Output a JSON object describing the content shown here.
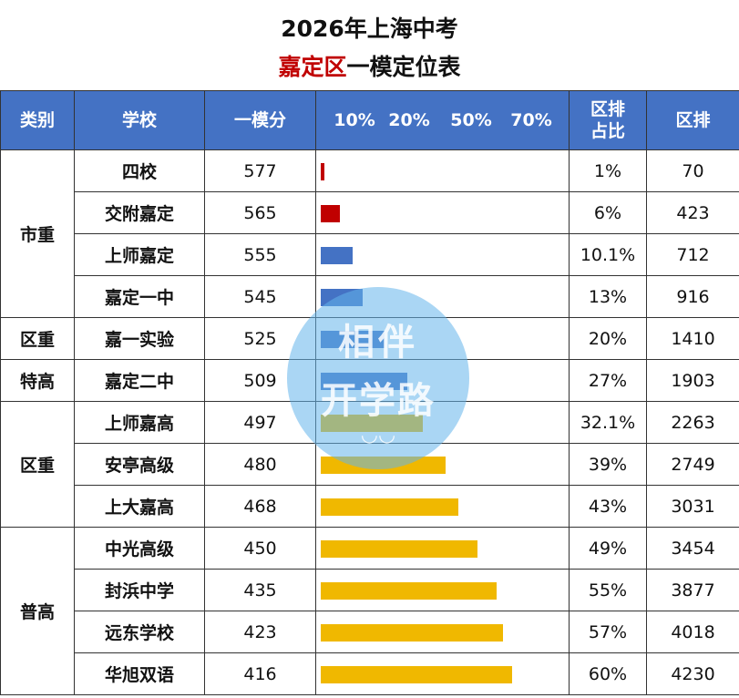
{
  "title_line1": "2026年上海中考",
  "title_line2_red": "嘉定区",
  "title_line2_rest": "一模定位表",
  "headers": {
    "category": "类别",
    "school": "学校",
    "score": "一模分",
    "district_pct": "区排\n占比",
    "district_rank": "区排"
  },
  "scale_ticks": [
    "10%",
    "20%",
    "50%",
    "70%"
  ],
  "colors": {
    "header": "#4472c4",
    "red": "#c00000",
    "blue": "#4472c4",
    "gold": "#f0b800"
  },
  "watermark": {
    "line1": "相伴",
    "line2": "开学路",
    "line3": "◡◡"
  },
  "chart_data": {
    "type": "bar",
    "title": "2026年上海中考 嘉定区一模定位表",
    "categories": [
      "四校",
      "交附嘉定",
      "上师嘉定",
      "嘉定一中",
      "嘉一实验",
      "嘉定二中",
      "上师嘉高",
      "安亭高级",
      "上大嘉高",
      "中光高级",
      "封浜中学",
      "远东学校",
      "华旭双语"
    ],
    "values": [
      1,
      6,
      10.1,
      13,
      20,
      27,
      32.1,
      39,
      43,
      49,
      55,
      57,
      60
    ],
    "value_labels": [
      "1%",
      "6%",
      "10.1%",
      "13%",
      "20%",
      "27%",
      "32.1%",
      "39%",
      "43%",
      "49%",
      "55%",
      "57%",
      "60%"
    ],
    "scores": [
      "577",
      "565",
      "555",
      "545",
      "525",
      "509",
      "497",
      "480",
      "468",
      "450",
      "435",
      "423",
      "416"
    ],
    "ranks": [
      "70",
      "423",
      "712",
      "916",
      "1410",
      "1903",
      "2263",
      "2749",
      "3031",
      "3454",
      "3877",
      "4018",
      "4230"
    ],
    "bar_colors": [
      "red",
      "red",
      "blue",
      "blue",
      "blue",
      "blue",
      "gold",
      "gold",
      "gold",
      "gold",
      "gold",
      "gold",
      "gold"
    ],
    "groups": [
      {
        "label": "市重",
        "rows": 4
      },
      {
        "label": "区重",
        "rows": 1
      },
      {
        "label": "特高",
        "rows": 1
      },
      {
        "label": "区重",
        "rows": 3
      },
      {
        "label": "普高",
        "rows": 4
      }
    ],
    "xlim": [
      0,
      72
    ]
  }
}
